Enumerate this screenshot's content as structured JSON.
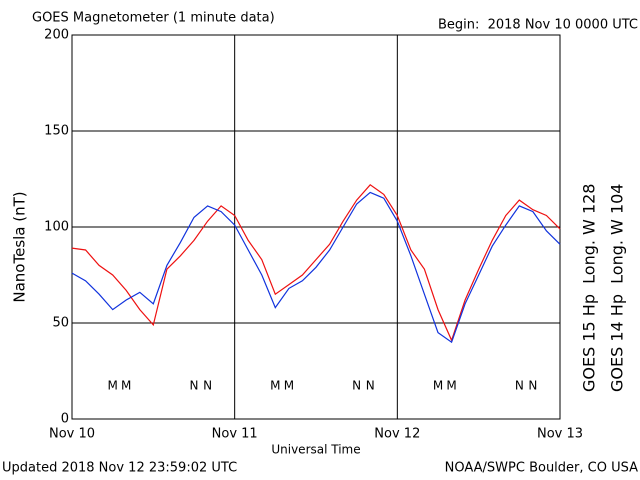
{
  "chart_data": {
    "type": "line",
    "title": "GOES Magnetometer (1 minute data)",
    "subtitle": "Begin:  2018 Nov 10 0000 UTC",
    "y_label": "NanoTesla (nT)",
    "x_label": "Universal Time",
    "footer_left": "Updated 2018 Nov 12 23:59:02 UTC",
    "footer_right": "NOAA/SWPC Boulder, CO USA",
    "x": [
      0,
      2,
      4,
      6,
      8,
      10,
      12,
      14,
      16,
      18,
      20,
      22,
      24,
      26,
      28,
      30,
      32,
      34,
      36,
      38,
      40,
      42,
      44,
      46,
      48,
      50,
      52,
      54,
      56,
      58,
      60,
      62,
      64,
      66,
      68,
      70,
      72
    ],
    "series": [
      {
        "name": "GOES 15 Hp  Long. W 128",
        "color": "#ee1111",
        "values": [
          89,
          88,
          80,
          75,
          67,
          57,
          49,
          78,
          85,
          93,
          103,
          111,
          106,
          93,
          83,
          65,
          70,
          75,
          83,
          91,
          103,
          114,
          122,
          117,
          106,
          88,
          78,
          57,
          41,
          62,
          78,
          93,
          106,
          114,
          109,
          106,
          99
        ]
      },
      {
        "name": "GOES 14 Hp  Long. W 104",
        "color": "#1133dd",
        "values": [
          76,
          72,
          65,
          57,
          62,
          66,
          60,
          80,
          92,
          105,
          111,
          108,
          101,
          88,
          75,
          58,
          68,
          72,
          79,
          88,
          100,
          112,
          118,
          115,
          103,
          85,
          65,
          45,
          40,
          60,
          75,
          90,
          101,
          111,
          108,
          98,
          91
        ]
      }
    ],
    "markers": [
      {
        "text": "M",
        "x": 6,
        "series": 1
      },
      {
        "text": "M",
        "x": 8,
        "series": 0
      },
      {
        "text": "N",
        "x": 18,
        "series": 1
      },
      {
        "text": "N",
        "x": 20,
        "series": 0
      },
      {
        "text": "M",
        "x": 30,
        "series": 1
      },
      {
        "text": "M",
        "x": 32,
        "series": 0
      },
      {
        "text": "N",
        "x": 42,
        "series": 1
      },
      {
        "text": "N",
        "x": 44,
        "series": 0
      },
      {
        "text": "M",
        "x": 54,
        "series": 1
      },
      {
        "text": "M",
        "x": 56,
        "series": 0
      },
      {
        "text": "N",
        "x": 66,
        "series": 1
      },
      {
        "text": "N",
        "x": 68,
        "series": 0
      }
    ],
    "xlim": [
      0,
      72
    ],
    "xticks": [
      {
        "value": 0,
        "label": "Nov 10"
      },
      {
        "value": 24,
        "label": "Nov 11"
      },
      {
        "value": 48,
        "label": "Nov 12"
      },
      {
        "value": 72,
        "label": "Nov 13"
      }
    ],
    "ylim": [
      0,
      200
    ],
    "yticks": [
      0,
      50,
      100,
      150,
      200
    ],
    "grid": true
  }
}
